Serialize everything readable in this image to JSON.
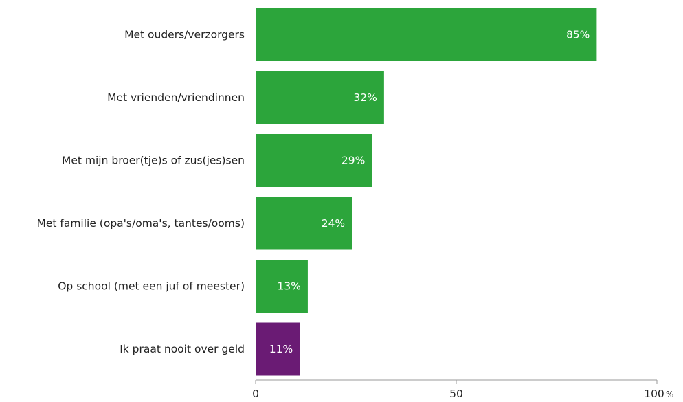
{
  "chart_data": {
    "type": "bar",
    "orientation": "horizontal",
    "categories": [
      "Met ouders/verzorgers",
      "Met vrienden/vriendinnen",
      "Met mijn broer(tje)s of zus(jes)sen",
      "Met familie (opa's/oma's, tantes/ooms)",
      "Op school (met een juf of meester)",
      "Ik praat nooit over geld"
    ],
    "values": [
      85,
      32,
      29,
      24,
      13,
      11
    ],
    "value_labels": [
      "85%",
      "32%",
      "29%",
      "24%",
      "13%",
      "11%"
    ],
    "bar_colors": [
      "#2ca53b",
      "#2ca53b",
      "#2ca53b",
      "#2ca53b",
      "#2ca53b",
      "#6a1b74"
    ],
    "xlim": [
      0,
      100
    ],
    "x_ticks": [
      0,
      50,
      100
    ],
    "x_tick_labels": [
      "0",
      "50",
      "100"
    ],
    "x_unit": "%",
    "title": "",
    "xlabel": "",
    "ylabel": "",
    "grid": false,
    "legend": "none"
  }
}
